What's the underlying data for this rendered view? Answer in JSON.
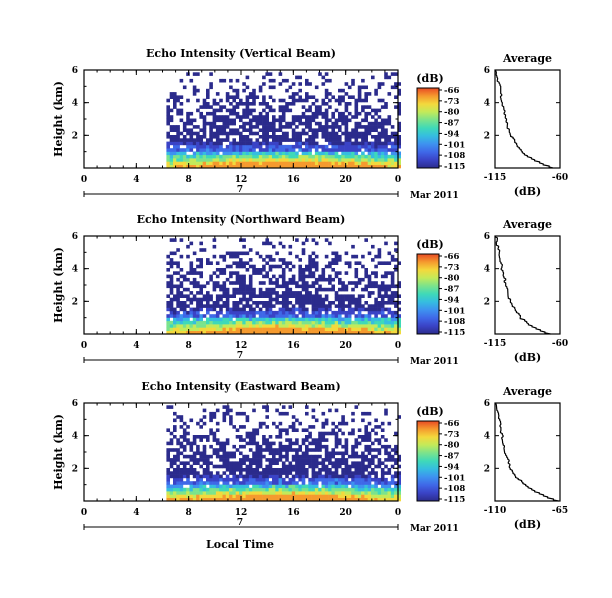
{
  "x_axis_label": "Local Time",
  "unit_label": "(dB)",
  "avg_title": "Average",
  "colormap": [
    "#2b2b8c",
    "#3a43c6",
    "#3f68e8",
    "#3e92f0",
    "#35bde0",
    "#3fd9b8",
    "#7be38c",
    "#c3ea5a",
    "#f3d93d",
    "#f59a2e",
    "#e84a24"
  ],
  "chart_data": [
    {
      "type": "heatmap",
      "title": "Echo Intensity (Vertical Beam)",
      "ylabel": "Height (km)",
      "x_ticks": [
        "0",
        "4",
        "8",
        "12",
        "16",
        "20",
        "0"
      ],
      "x_range": [
        0,
        24
      ],
      "y_ticks": [
        "6",
        "4",
        "2"
      ],
      "y_range": [
        0,
        6
      ],
      "data_start_hour": 6.3,
      "date_day": "7",
      "date_label": "Mar 2011",
      "colorbar_ticks": [
        "-66",
        "-73",
        "-80",
        "-87",
        "-94",
        "-101",
        "-108",
        "-115"
      ],
      "average": {
        "x_range": [
          -115,
          -60
        ],
        "x_ticks": [
          "-115",
          "-60"
        ],
        "y_ticks": [
          "6",
          "4",
          "2"
        ],
        "xlabel": "(dB)",
        "profile": [
          [
            0.0,
            -66
          ],
          [
            0.5,
            -82
          ],
          [
            1.0,
            -92
          ],
          [
            1.5,
            -97
          ],
          [
            2.0,
            -101
          ],
          [
            2.5,
            -104
          ],
          [
            3.0,
            -106
          ],
          [
            3.5,
            -107
          ],
          [
            4.0,
            -109
          ],
          [
            4.5,
            -110
          ],
          [
            5.0,
            -111
          ],
          [
            5.5,
            -113
          ],
          [
            6.0,
            -114
          ]
        ]
      }
    },
    {
      "type": "heatmap",
      "title": "Echo Intensity (Northward Beam)",
      "ylabel": "Height (km)",
      "x_ticks": [
        "0",
        "4",
        "8",
        "12",
        "16",
        "20",
        "0"
      ],
      "x_range": [
        0,
        24
      ],
      "y_ticks": [
        "6",
        "4",
        "2"
      ],
      "y_range": [
        0,
        6
      ],
      "data_start_hour": 6.3,
      "date_day": "7",
      "date_label": "Mar 2011",
      "colorbar_ticks": [
        "-66",
        "-73",
        "-80",
        "-87",
        "-94",
        "-101",
        "-108",
        "-115"
      ],
      "average": {
        "x_range": [
          -115,
          -60
        ],
        "x_ticks": [
          "-115",
          "-60"
        ],
        "y_ticks": [
          "6",
          "4",
          "2"
        ],
        "xlabel": "(dB)",
        "profile": [
          [
            0.0,
            -68
          ],
          [
            0.5,
            -84
          ],
          [
            1.0,
            -93
          ],
          [
            1.5,
            -98
          ],
          [
            2.0,
            -102
          ],
          [
            2.5,
            -104
          ],
          [
            3.0,
            -106
          ],
          [
            3.5,
            -107
          ],
          [
            4.0,
            -109
          ],
          [
            4.5,
            -110
          ],
          [
            5.0,
            -111
          ],
          [
            5.5,
            -113
          ],
          [
            6.0,
            -114
          ]
        ]
      }
    },
    {
      "type": "heatmap",
      "title": "Echo Intensity (Eastward Beam)",
      "ylabel": "Height (km)",
      "x_ticks": [
        "0",
        "4",
        "8",
        "12",
        "16",
        "20",
        "0"
      ],
      "x_range": [
        0,
        24
      ],
      "y_ticks": [
        "6",
        "4",
        "2"
      ],
      "y_range": [
        0,
        6
      ],
      "data_start_hour": 6.3,
      "date_day": "7",
      "date_label": "Mar 2011",
      "colorbar_ticks": [
        "-66",
        "-73",
        "-80",
        "-87",
        "-94",
        "-101",
        "-108",
        "-115"
      ],
      "average": {
        "x_range": [
          -110,
          -65
        ],
        "x_ticks": [
          "-110",
          "-65"
        ],
        "y_ticks": [
          "6",
          "4",
          "2"
        ],
        "xlabel": "(dB)",
        "profile": [
          [
            0.0,
            -66
          ],
          [
            0.5,
            -80
          ],
          [
            1.0,
            -89
          ],
          [
            1.5,
            -95
          ],
          [
            2.0,
            -99
          ],
          [
            2.5,
            -101
          ],
          [
            3.0,
            -103
          ],
          [
            3.5,
            -104
          ],
          [
            4.0,
            -105
          ],
          [
            4.5,
            -106
          ],
          [
            5.0,
            -107
          ],
          [
            5.5,
            -108
          ],
          [
            6.0,
            -109
          ]
        ]
      }
    }
  ]
}
